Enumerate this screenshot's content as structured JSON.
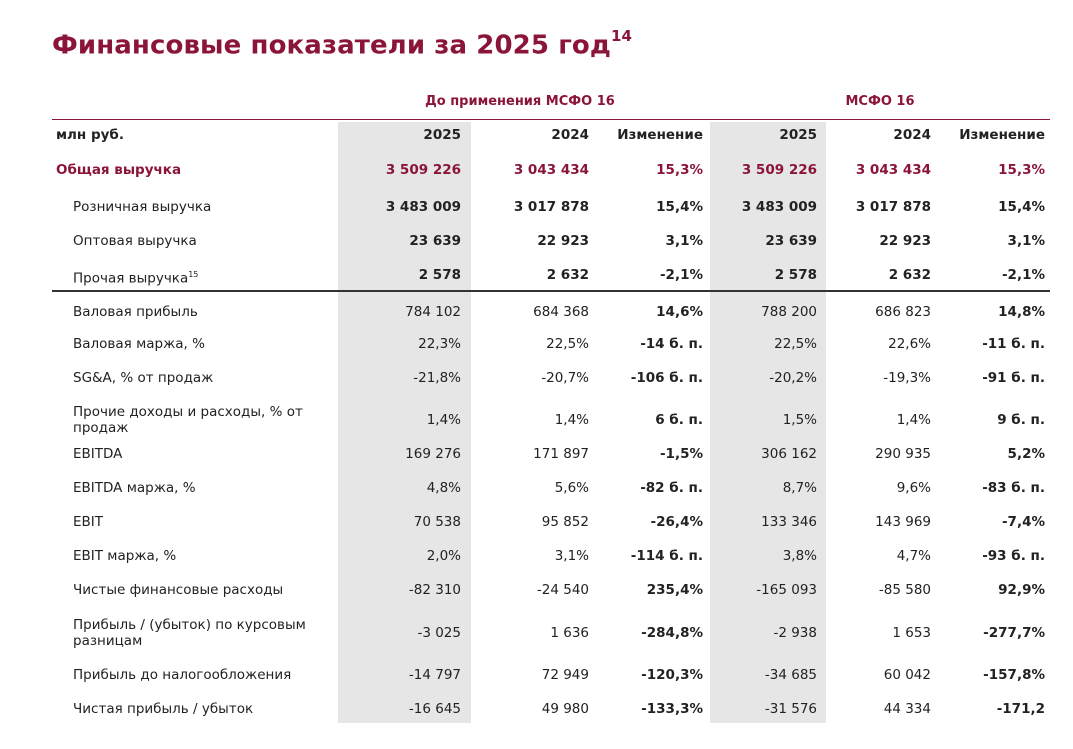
{
  "title": "Финансовые показатели за 2025 год",
  "title_sup": "14",
  "groups": {
    "pre": "До применения МСФО 16",
    "ifrs": "МСФО 16"
  },
  "header": {
    "unit": "млн руб.",
    "cols": [
      "2025",
      "2024",
      "Изменение",
      "2025",
      "2024",
      "Изменение"
    ]
  },
  "rows": [
    {
      "label": "Общая выручка",
      "values": [
        "3 509 226",
        "3 043 434",
        "15,3%",
        "3 509 226",
        "3 043 434",
        "15,3%"
      ]
    },
    {
      "label": "Розничная выручка",
      "values": [
        "3 483 009",
        "3 017 878",
        "15,4%",
        "3 483 009",
        "3 017 878",
        "15,4%"
      ]
    },
    {
      "label": "Оптовая выручка",
      "values": [
        "23 639",
        "22 923",
        "3,1%",
        "23 639",
        "22 923",
        "3,1%"
      ]
    },
    {
      "label": "Прочая выручка",
      "label_sup": "15",
      "values": [
        "2 578",
        "2 632",
        "-2,1%",
        "2 578",
        "2 632",
        "-2,1%"
      ]
    },
    {
      "label": "Валовая прибыль",
      "values": [
        "784 102",
        "684 368",
        "14,6%",
        "788 200",
        "686 823",
        "14,8%"
      ]
    },
    {
      "label": "Валовая маржа, %",
      "values": [
        "22,3%",
        "22,5%",
        "-14 б. п.",
        "22,5%",
        "22,6%",
        "-11 б. п."
      ]
    },
    {
      "label": "SG&A, % от продаж",
      "values": [
        "-21,8%",
        "-20,7%",
        "-106 б. п.",
        "-20,2%",
        "-19,3%",
        "-91 б. п."
      ]
    },
    {
      "label": "Прочие доходы и расходы, % от продаж",
      "values": [
        "1,4%",
        "1,4%",
        "6 б. п.",
        "1,5%",
        "1,4%",
        "9 б. п."
      ]
    },
    {
      "label": "EBITDA",
      "values": [
        "169 276",
        "171 897",
        "-1,5%",
        "306 162",
        "290 935",
        "5,2%"
      ]
    },
    {
      "label": "EBITDA маржа, %",
      "values": [
        "4,8%",
        "5,6%",
        "-82 б. п.",
        "8,7%",
        "9,6%",
        "-83 б. п."
      ]
    },
    {
      "label": "EBIT",
      "values": [
        "70 538",
        "95 852",
        "-26,4%",
        "133 346",
        "143 969",
        "-7,4%"
      ]
    },
    {
      "label": "EBIT маржа, %",
      "values": [
        "2,0%",
        "3,1%",
        "-114 б. п.",
        "3,8%",
        "4,7%",
        "-93 б. п."
      ]
    },
    {
      "label": "Чистые финансовые расходы",
      "values": [
        "-82 310",
        "-24 540",
        "235,4%",
        "-165 093",
        "-85 580",
        "92,9%"
      ]
    },
    {
      "label": "Прибыль / (убыток) по курсовым разницам",
      "values": [
        "-3 025",
        "1 636",
        "-284,8%",
        "-2 938",
        "1 653",
        "-277,7%"
      ]
    },
    {
      "label": "Прибыль до налогообложения",
      "values": [
        "-14 797",
        "72 949",
        "-120,3%",
        "-34 685",
        "60 042",
        "-157,8%"
      ]
    },
    {
      "label": "Чистая прибыль / убыток",
      "values": [
        "-16 645",
        "49 980",
        "-133,3%",
        "-31 576",
        "44 334",
        "-171,2"
      ]
    }
  ],
  "colors": {
    "accent": "#8b1538",
    "shade": "#e6e6e6"
  }
}
